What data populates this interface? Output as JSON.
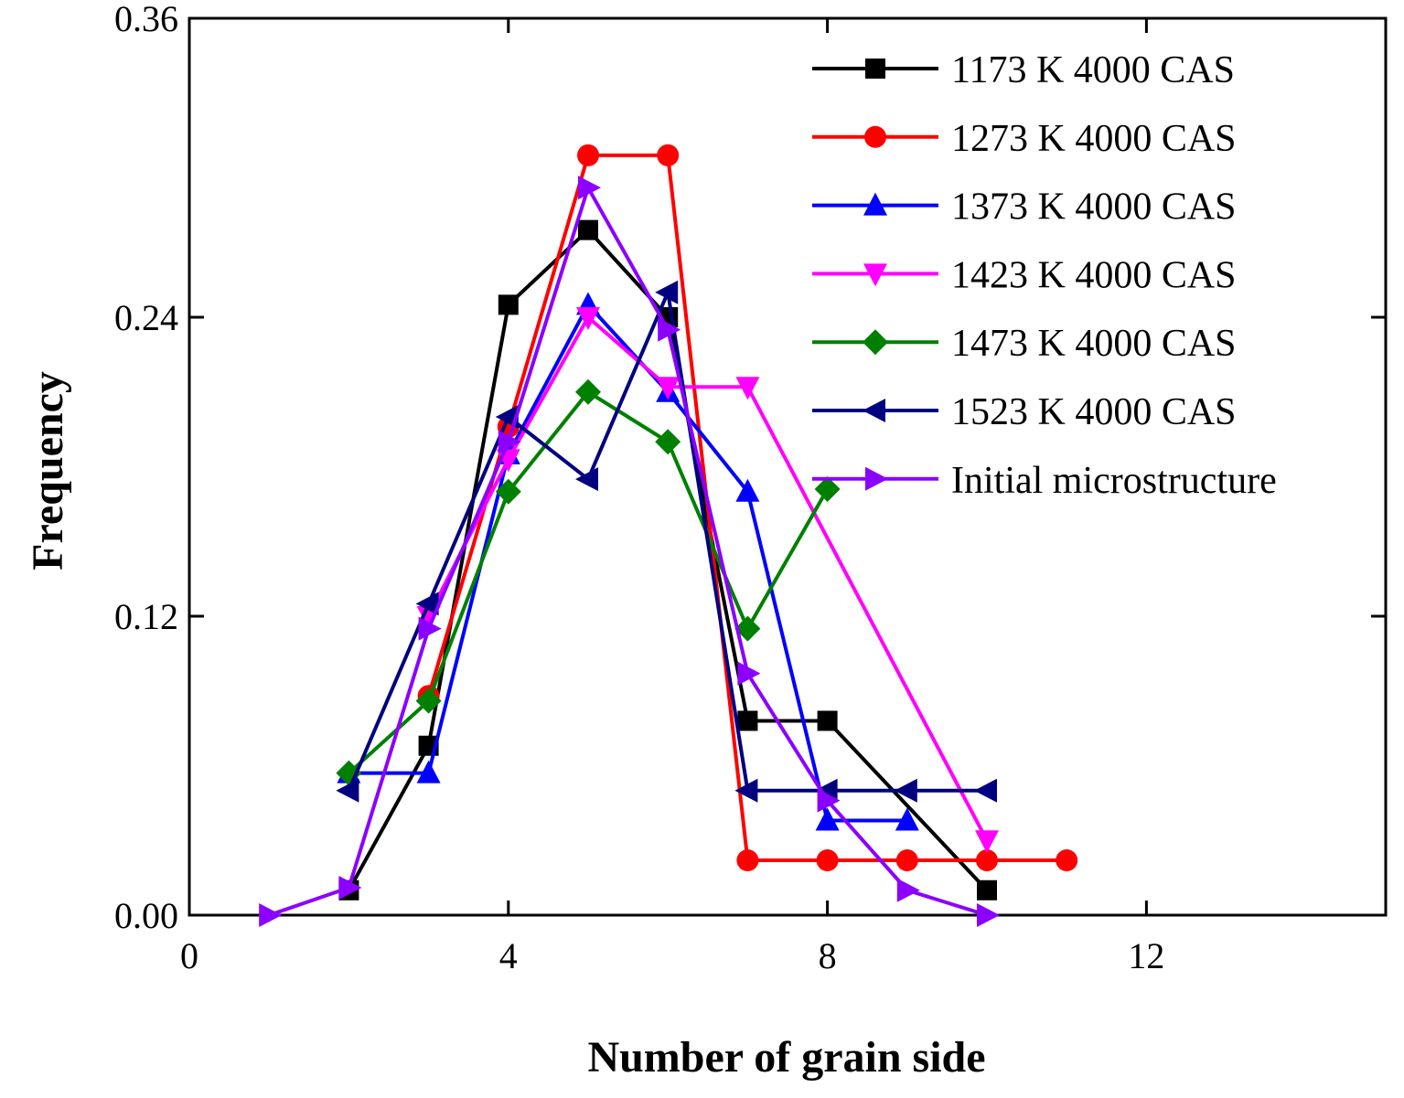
{
  "chart_data": {
    "type": "line",
    "title": "",
    "xlabel": "Number of grain side",
    "ylabel": "Frequency",
    "xlim": [
      0,
      15
    ],
    "ylim": [
      0,
      0.36
    ],
    "xticks": [
      0,
      4,
      8,
      12
    ],
    "xtick_labels": [
      "0",
      "4",
      "8",
      "12"
    ],
    "yticks": [
      0,
      0.12,
      0.24,
      0.36
    ],
    "ytick_labels": [
      "0.00",
      "0.12",
      "0.24",
      "0.36"
    ],
    "grid": false,
    "legend_position": "top-right",
    "series": [
      {
        "name": "1173 K 4000 CAS",
        "color": "#000000",
        "marker": "square",
        "x": [
          2,
          3,
          4,
          5,
          6,
          7,
          8,
          10
        ],
        "y": [
          0.01,
          0.068,
          0.245,
          0.275,
          0.24,
          0.078,
          0.078,
          0.01
        ]
      },
      {
        "name": "1273 K 4000 CAS",
        "color": "#ff0000",
        "marker": "circle",
        "x": [
          3,
          4,
          5,
          6,
          7,
          8,
          9,
          10,
          11
        ],
        "y": [
          0.088,
          0.196,
          0.305,
          0.305,
          0.022,
          0.022,
          0.022,
          0.022,
          0.022
        ]
      },
      {
        "name": "1373 K 4000 CAS",
        "color": "#0000ff",
        "marker": "triangle-up",
        "x": [
          2,
          3,
          4,
          5,
          6,
          7,
          8,
          9
        ],
        "y": [
          0.057,
          0.057,
          0.185,
          0.245,
          0.21,
          0.17,
          0.038,
          0.038
        ]
      },
      {
        "name": "1423 K 4000 CAS",
        "color": "#ff00ff",
        "marker": "triangle-down",
        "x": [
          3,
          4,
          5,
          6,
          7,
          10
        ],
        "y": [
          0.12,
          0.183,
          0.24,
          0.212,
          0.212,
          0.03
        ]
      },
      {
        "name": "1473 K 4000 CAS",
        "color": "#008000",
        "marker": "diamond",
        "x": [
          2,
          3,
          4,
          5,
          6,
          7,
          8
        ],
        "y": [
          0.057,
          0.086,
          0.17,
          0.21,
          0.19,
          0.115,
          0.171
        ]
      },
      {
        "name": "1523 K 4000 CAS",
        "color": "#000080",
        "marker": "triangle-left",
        "x": [
          2,
          3,
          4,
          5,
          6,
          7,
          8,
          9,
          10
        ],
        "y": [
          0.05,
          0.125,
          0.2,
          0.175,
          0.25,
          0.05,
          0.05,
          0.05,
          0.05
        ]
      },
      {
        "name": "Initial microstructure",
        "color": "#8b00ff",
        "marker": "triangle-right",
        "x": [
          1,
          2,
          3,
          4,
          5,
          6,
          7,
          8,
          9,
          10
        ],
        "y": [
          0.0,
          0.011,
          0.115,
          0.19,
          0.292,
          0.235,
          0.097,
          0.046,
          0.01,
          0.0
        ]
      }
    ]
  }
}
